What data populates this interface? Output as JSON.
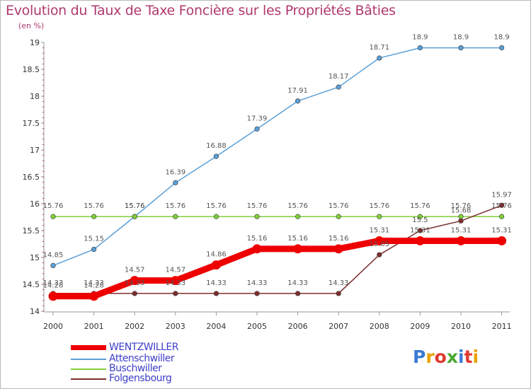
{
  "title": "Evolution du Taux de Taxe Foncière sur les Propriétés Bâties",
  "subtitle": "(en %)",
  "logo": {
    "text": "Proxiti",
    "letter_colors": [
      "#3a7bd5",
      "#e8a200",
      "#e03a2f",
      "#4aa832",
      "#3a7bd5",
      "#e03a2f",
      "#e8a200"
    ]
  },
  "chart_data": {
    "type": "line",
    "x": [
      "2000",
      "2001",
      "2002",
      "2003",
      "2004",
      "2005",
      "2006",
      "2007",
      "2008",
      "2009",
      "2010",
      "2011"
    ],
    "ylim": [
      14,
      19
    ],
    "y_ticks": [
      "14",
      "14.5",
      "15",
      "15.5",
      "16",
      "16.5",
      "17",
      "17.5",
      "18",
      "18.5",
      "19"
    ],
    "grid": false,
    "legend_position": "bottom-left",
    "series": [
      {
        "name": "WENTZWILLER",
        "color": "#ee0000",
        "values": [
          14.28,
          14.28,
          14.57,
          14.57,
          14.86,
          15.16,
          15.16,
          15.16,
          15.31,
          15.31,
          15.31,
          15.31
        ],
        "labels": [
          "14.28",
          "14.28",
          "14.57",
          "14.57",
          "14.86",
          "15.16",
          "15.16",
          "15.16",
          "15.31",
          "15.31",
          "15.31",
          "15.31"
        ]
      },
      {
        "name": "Attenschwiller",
        "color": "#5b9fd6",
        "values": [
          14.85,
          15.15,
          15.76,
          16.39,
          16.88,
          17.39,
          17.91,
          18.17,
          18.71,
          18.9,
          18.9,
          18.9
        ],
        "labels": [
          "14.85",
          "15.15",
          "15.76",
          "16.39",
          "16.88",
          "17.39",
          "17.91",
          "18.17",
          "18.71",
          "18.9",
          "18.9",
          "18.9"
        ]
      },
      {
        "name": "Buschwiller",
        "color": "#80cf3c",
        "values": [
          15.76,
          15.76,
          15.76,
          15.76,
          15.76,
          15.76,
          15.76,
          15.76,
          15.76,
          15.76,
          15.76,
          15.76
        ],
        "labels": [
          "15.76",
          "15.76",
          "15.76",
          "15.76",
          "15.76",
          "15.76",
          "15.76",
          "15.76",
          "15.76",
          "15.76",
          "15.76",
          "15.76"
        ]
      },
      {
        "name": "Folgensbourg",
        "color": "#7d2e2e",
        "values": [
          14.33,
          14.33,
          14.33,
          14.33,
          14.33,
          14.33,
          14.33,
          14.33,
          15.05,
          15.5,
          15.68,
          15.97
        ],
        "labels": [
          "14.33",
          "14.33",
          "14.33",
          "14.33",
          "14.33",
          "14.33",
          "14.33",
          "14.33",
          "15.05",
          "15.5",
          "15.68",
          "15.97"
        ]
      }
    ]
  }
}
